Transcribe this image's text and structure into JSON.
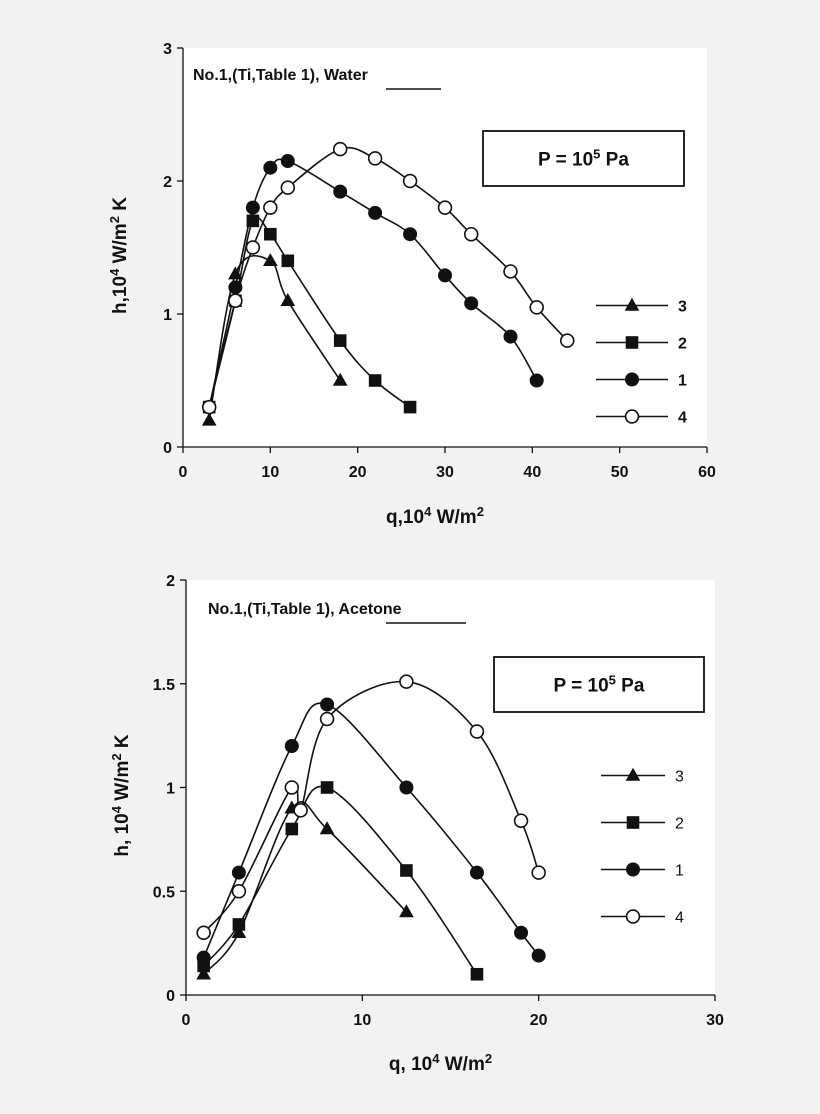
{
  "chart_data": [
    {
      "type": "line",
      "note_prefix": "No.1,(Ti,Table 1),",
      "note_fluid": "Water",
      "pressure_label": "P  =  10",
      "pressure_exp": "5",
      "pressure_unit": " Pa",
      "xlabel_main": "q,10",
      "xlabel_exp1": "4",
      "xlabel_mid": "  W/m",
      "xlabel_exp2": "2",
      "ylabel_main": "h,10",
      "ylabel_exp1": "4",
      "ylabel_mid": " W/m",
      "ylabel_exp2": "2",
      "ylabel_end": " K",
      "xlim": [
        0,
        60
      ],
      "ylim": [
        0,
        3
      ],
      "xticks": [
        0,
        10,
        20,
        30,
        40,
        50,
        60
      ],
      "xtick_labels": [
        "0",
        "10",
        "20",
        "30",
        "40",
        "50",
        "60"
      ],
      "yticks": [
        0,
        1,
        2,
        3
      ],
      "ytick_labels": [
        "0",
        "1",
        "2",
        "3"
      ],
      "legend_bold": true,
      "grid": false,
      "legend_position": "right",
      "series": [
        {
          "name": "3",
          "marker": "triangle",
          "x": [
            3,
            6,
            10,
            12,
            18
          ],
          "y": [
            0.2,
            1.3,
            1.4,
            1.1,
            0.5
          ]
        },
        {
          "name": "2",
          "marker": "square",
          "x": [
            3,
            6,
            8,
            10,
            12,
            18,
            22,
            26
          ],
          "y": [
            0.3,
            1.1,
            1.7,
            1.6,
            1.4,
            0.8,
            0.5,
            0.3
          ]
        },
        {
          "name": "1",
          "marker": "circle-filled",
          "x": [
            3,
            6,
            8,
            10,
            12,
            18,
            22,
            26,
            30,
            33,
            37.5,
            40.5
          ],
          "y": [
            0.3,
            1.2,
            1.8,
            2.1,
            2.15,
            1.92,
            1.76,
            1.6,
            1.29,
            1.08,
            0.83,
            0.5
          ]
        },
        {
          "name": "4",
          "marker": "circle-open",
          "x": [
            3,
            6,
            8,
            10,
            12,
            18,
            22,
            26,
            30,
            33,
            37.5,
            40.5,
            44
          ],
          "y": [
            0.3,
            1.1,
            1.5,
            1.8,
            1.95,
            2.24,
            2.17,
            2.0,
            1.8,
            1.6,
            1.32,
            1.05,
            0.8
          ]
        }
      ]
    },
    {
      "type": "line",
      "note_prefix": "No.1,(Ti,Table 1),",
      "note_fluid": "Acetone",
      "pressure_label": "P  =  10",
      "pressure_exp": "5",
      "pressure_unit": " Pa",
      "xlabel_main": "q, 10",
      "xlabel_exp1": "4",
      "xlabel_mid": "  W/m",
      "xlabel_exp2": "2",
      "ylabel_main": "h, 10",
      "ylabel_exp1": "4",
      "ylabel_mid": " W/m",
      "ylabel_exp2": "2",
      "ylabel_end": " K",
      "xlim": [
        0,
        30
      ],
      "ylim": [
        0,
        2
      ],
      "xticks": [
        0,
        10,
        20,
        30
      ],
      "xtick_labels": [
        "0",
        "10",
        "20",
        "30"
      ],
      "yticks": [
        0,
        0.5,
        1,
        1.5,
        2
      ],
      "ytick_labels": [
        "0",
        "0.5",
        "1",
        "1.5",
        "2"
      ],
      "legend_bold": false,
      "grid": false,
      "legend_position": "right",
      "series": [
        {
          "name": "3",
          "marker": "triangle",
          "x": [
            1,
            3,
            6,
            8,
            12.5
          ],
          "y": [
            0.1,
            0.3,
            0.9,
            0.8,
            0.4
          ]
        },
        {
          "name": "2",
          "marker": "square",
          "x": [
            1,
            3,
            6,
            8,
            12.5,
            16.5
          ],
          "y": [
            0.14,
            0.34,
            0.8,
            1.0,
            0.6,
            0.1
          ]
        },
        {
          "name": "1",
          "marker": "circle-filled",
          "x": [
            1,
            3,
            6,
            8,
            12.5,
            16.5,
            19,
            20
          ],
          "y": [
            0.18,
            0.59,
            1.2,
            1.4,
            1.0,
            0.59,
            0.3,
            0.19
          ]
        },
        {
          "name": "4",
          "marker": "circle-open",
          "x": [
            1,
            3,
            6,
            6.5,
            8,
            12.5,
            16.5,
            19,
            20
          ],
          "y": [
            0.3,
            0.5,
            1.0,
            0.89,
            1.33,
            1.51,
            1.27,
            0.84,
            0.59
          ]
        }
      ]
    }
  ]
}
